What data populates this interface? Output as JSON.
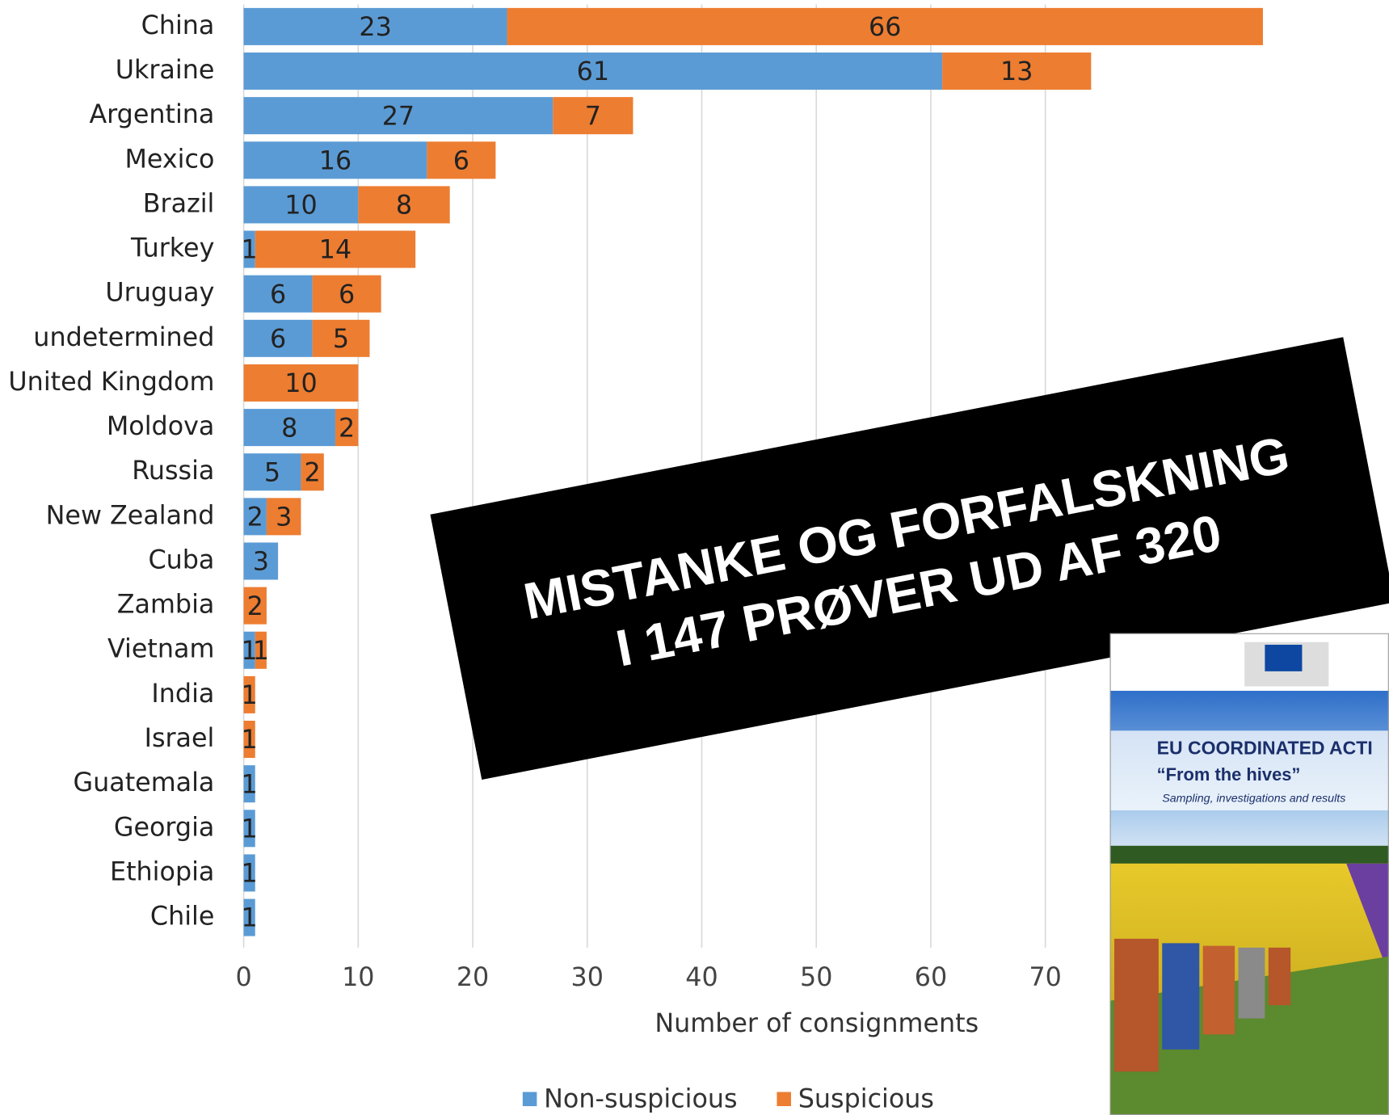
{
  "chart_data": {
    "type": "stacked-barh",
    "categories": [
      "China",
      "Ukraine",
      "Argentina",
      "Mexico",
      "Brazil",
      "Turkey",
      "Uruguay",
      "undetermined",
      "United Kingdom",
      "Moldova",
      "Russia",
      "New Zealand",
      "Cuba",
      "Zambia",
      "Vietnam",
      "India",
      "Israel",
      "Guatemala",
      "Georgia",
      "Ethiopia",
      "Chile"
    ],
    "series": [
      {
        "name": "Non-suspicious",
        "color": "#5b9bd5",
        "values": [
          23,
          61,
          27,
          16,
          10,
          1,
          6,
          6,
          null,
          8,
          5,
          2,
          3,
          null,
          1,
          null,
          null,
          1,
          1,
          1,
          1
        ]
      },
      {
        "name": "Suspicious",
        "color": "#ed7d31",
        "values": [
          66,
          13,
          7,
          6,
          8,
          14,
          6,
          5,
          10,
          2,
          2,
          3,
          null,
          2,
          1,
          1,
          1,
          null,
          null,
          null,
          null
        ]
      }
    ],
    "xlim": [
      0,
      90
    ],
    "xticks": [
      0,
      10,
      20,
      30,
      40,
      50,
      60,
      70
    ],
    "grid": true,
    "xlabel": "Number of consignments",
    "legend": "bottom",
    "overlay": {
      "line1": "MISTANKE OG FORFALSKNING",
      "line2": "I 147 PRØVER UD AF 320"
    },
    "cover": {
      "title": "EU COORDINATED ACTI",
      "subtitle": "“From the hives”",
      "caption": "Sampling, investigations and results"
    }
  }
}
